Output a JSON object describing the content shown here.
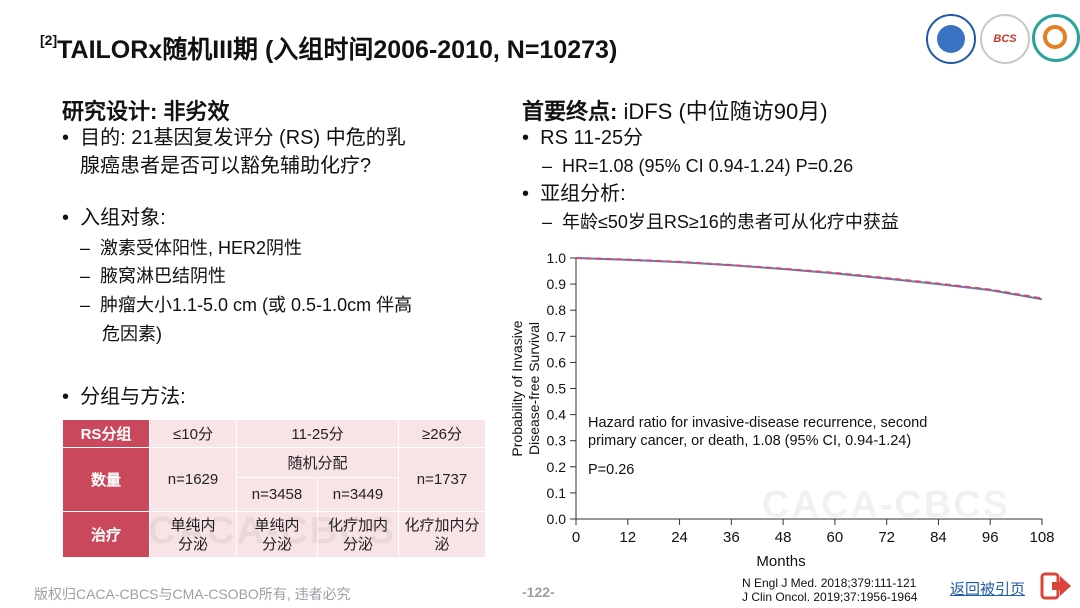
{
  "slide": {
    "title_ref": "[2]",
    "title": "TAILORx随机III期 (入组时间2006-2010, N=10273)"
  },
  "left": {
    "heading_bold": "研究设计: 非劣效",
    "aim_bullet_line1": "目的: 21基因复发评分 (RS) 中危的乳",
    "aim_bullet_line2": "腺癌患者是否可以豁免辅助化疗?",
    "population_bullet": "入组对象:",
    "population_items": [
      "激素受体阳性, HER2阴性",
      "腋窝淋巴结阴性",
      "肿瘤大小1.1-5.0 cm (或 0.5-1.0cm 伴高"
    ],
    "population_item3_cont": "危因素)",
    "groups_bullet": "分组与方法:"
  },
  "table": {
    "col_rs": "RS分组",
    "col_low": "≤10分",
    "col_mid": "11-25分",
    "col_high": "≥26分",
    "row_count": "数量",
    "n_low": "n=1629",
    "random_label": "随机分配",
    "n_mid_a": "n=3458",
    "n_mid_b": "n=3449",
    "n_high": "n=1737",
    "row_treatment": "治疗",
    "treat_low": "单纯内分泌",
    "treat_mid_a": "单纯内分泌",
    "treat_mid_b": "化疗加内分泌",
    "treat_high": "化疗加内分泌"
  },
  "right": {
    "heading_bold": "首要终点:",
    "heading_rest": " iDFS (中位随访90月)",
    "rs_bullet": "RS 11-25分",
    "hr_item": "HR=1.08 (95% CI 0.94-1.24) P=0.26",
    "subgroup_bullet": "亚组分析:",
    "subgroup_item": "年龄≤50岁且RS≥16的患者可从化疗中获益"
  },
  "chart_data": {
    "type": "line",
    "xlabel": "Months",
    "ylabel_line1": "Probability of Invasive",
    "ylabel_line2": "Disease-free Survival",
    "xlim": [
      0,
      108
    ],
    "ylim": [
      0.0,
      1.0
    ],
    "xticks": [
      0,
      12,
      24,
      36,
      48,
      60,
      72,
      84,
      96,
      108
    ],
    "yticks": [
      "0.0",
      "0.1",
      "0.2",
      "0.3",
      "0.4",
      "0.5",
      "0.6",
      "0.7",
      "0.8",
      "0.9",
      "1.0"
    ],
    "x": [
      0,
      12,
      24,
      36,
      48,
      60,
      72,
      84,
      96,
      108
    ],
    "series": [
      {
        "color": "#5b7fb8",
        "dash": false,
        "values": [
          1.0,
          0.993,
          0.984,
          0.972,
          0.958,
          0.941,
          0.921,
          0.9,
          0.877,
          0.842
        ]
      },
      {
        "color": "#d24b6d",
        "dash": true,
        "values": [
          1.0,
          0.994,
          0.985,
          0.973,
          0.959,
          0.943,
          0.923,
          0.902,
          0.879,
          0.845
        ]
      }
    ],
    "annotation_line1": "Hazard ratio for invasive-disease recurrence, second",
    "annotation_line2": "primary cancer, or death, 1.08 (95% CI, 0.94-1.24)",
    "annotation_p": "P=0.26"
  },
  "footer": {
    "copyright": "版权归CACA-CBCS与CMA-CSOBO所有, 违者必究",
    "page": "-122-",
    "ref1": "N Engl J Med. 2018;379:111-121",
    "ref2": "J Clin Oncol. 2019;37:1956-1964",
    "back_link": "返回被引页"
  },
  "watermark": "CACA-CBCS",
  "logos": {
    "logo2_text": "BCS"
  },
  "colors": {
    "table_header": "#c9485b",
    "table_cell": "#f8e4e7",
    "link": "#1f5aa8",
    "exit_icon": "#d9453a"
  }
}
